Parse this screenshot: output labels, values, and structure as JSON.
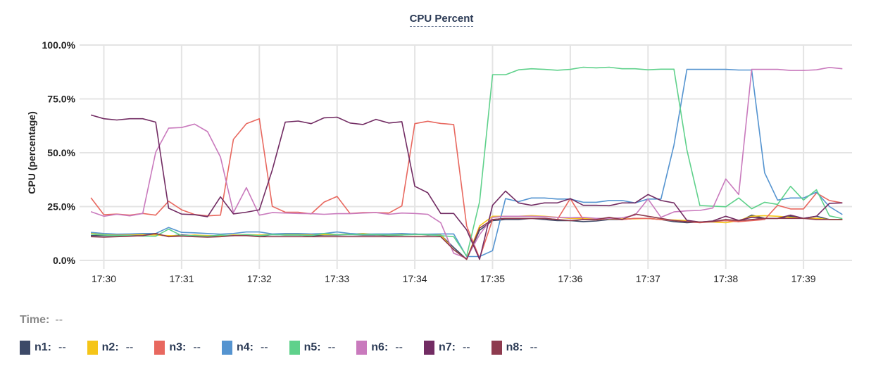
{
  "title": "CPU Percent",
  "time_label": "Time:",
  "time_value": "--",
  "chart_data": {
    "type": "line",
    "title": "CPU Percent",
    "xlabel": "",
    "ylabel": "CPU (percentage)",
    "ylim": [
      0,
      100
    ],
    "yticks": [
      "0.0%",
      "25.0%",
      "50.0%",
      "75.0%",
      "100.0%"
    ],
    "ytick_values": [
      0,
      25,
      50,
      75,
      100
    ],
    "xticks": [
      "17:30",
      "17:31",
      "17:32",
      "17:33",
      "17:34",
      "17:35",
      "17:36",
      "17:37",
      "17:38",
      "17:39"
    ],
    "x_start": "17:29:50",
    "x_step_seconds": 10,
    "grid": true,
    "legend_position": "bottom",
    "series": [
      {
        "name": "n1",
        "value_label": "--",
        "color": "#3d4a68",
        "values": [
          11.5,
          11.5,
          11.5,
          11.8,
          12,
          12,
          11.3,
          11.8,
          11.5,
          11,
          11.5,
          11.5,
          12,
          11.2,
          12,
          11.8,
          11.8,
          11.5,
          11.8,
          11.8,
          12,
          11.8,
          11.8,
          11.6,
          11.8,
          12.3,
          11.8,
          11.8,
          6,
          0.5,
          14,
          18.5,
          19,
          19,
          19.5,
          19,
          18.5,
          18.5,
          18,
          18.3,
          19,
          19,
          19.5,
          19.5,
          19,
          18,
          17.5,
          17.8,
          18.2,
          18.5,
          18,
          21,
          19.5,
          19.5,
          20.5,
          19.5,
          20.5,
          19,
          19
        ]
      },
      {
        "name": "n2",
        "value_label": "--",
        "color": "#f5c518",
        "values": [
          12.5,
          12,
          11.8,
          12,
          12,
          11.8,
          11.5,
          11.3,
          11.8,
          11.5,
          11.5,
          11.8,
          12,
          11.8,
          12.2,
          12,
          12,
          12,
          12,
          12,
          12.2,
          12.5,
          12,
          11.8,
          12,
          12,
          12,
          11.8,
          5,
          0.5,
          16,
          20.5,
          20.5,
          20.5,
          20.8,
          20.5,
          20,
          19.5,
          19.5,
          19.5,
          19.3,
          19.3,
          19.3,
          19.5,
          19,
          18.8,
          18.5,
          17.8,
          17.8,
          17.5,
          18.5,
          20.5,
          20.8,
          20.5,
          20,
          19.5,
          19.5,
          19,
          19
        ]
      },
      {
        "name": "n3",
        "value_label": "--",
        "color": "#e8685f",
        "values": [
          29.1,
          21.2,
          21.5,
          21,
          21.8,
          21,
          27.5,
          23.5,
          21.3,
          20.7,
          21,
          56.2,
          63.5,
          65.8,
          25.1,
          22.4,
          22.4,
          21.6,
          27.1,
          29.7,
          21.8,
          22.2,
          22.2,
          22,
          25.3,
          63.5,
          64.6,
          63.6,
          63.1,
          16,
          1,
          19,
          19.5,
          19.5,
          19.5,
          19.5,
          19,
          28.7,
          19,
          18.8,
          19.5,
          19,
          19.5,
          19.5,
          19,
          18.5,
          18,
          17.5,
          18,
          18.5,
          18,
          18.5,
          19,
          25.6,
          23.9,
          23.9,
          31.3,
          27.8,
          26.7
        ]
      },
      {
        "name": "n4",
        "value_label": "--",
        "color": "#5594d0",
        "values": [
          13,
          12.5,
          12.2,
          12.3,
          12.5,
          12.5,
          15.3,
          13,
          12.8,
          12.5,
          12.2,
          12.5,
          13.2,
          13.2,
          12.3,
          12.5,
          12.5,
          12.3,
          12.5,
          13.2,
          12.5,
          12.2,
          12.3,
          12.3,
          12.5,
          12.2,
          12.2,
          12.3,
          12.3,
          1.8,
          1.8,
          4.5,
          28.7,
          27.3,
          29,
          29,
          28.5,
          28.5,
          27,
          27,
          27.8,
          27.8,
          26.7,
          28.5,
          28.5,
          53.5,
          88.7,
          88.7,
          88.7,
          88.7,
          88.4,
          88.4,
          40.7,
          28,
          29,
          29,
          31.7,
          25,
          21.3
        ]
      },
      {
        "name": "n5",
        "value_label": "--",
        "color": "#5fd18b",
        "values": [
          12.2,
          11.8,
          11.5,
          11.5,
          11.3,
          11.2,
          14.5,
          11.5,
          11.5,
          11.2,
          11.8,
          11.5,
          12,
          11.5,
          12,
          11.8,
          11.8,
          11.5,
          12.5,
          12,
          12,
          12,
          12,
          11.8,
          11.8,
          12,
          12,
          11.5,
          11,
          2,
          27.3,
          86.2,
          86.2,
          88.5,
          89,
          88.7,
          88.3,
          88.7,
          89.7,
          89.4,
          89.7,
          89,
          89,
          88.5,
          88.8,
          88.8,
          51.3,
          25.5,
          25.2,
          24.9,
          29,
          24,
          27,
          26,
          34.4,
          28,
          32.8,
          20.7,
          19.4
        ]
      },
      {
        "name": "n6",
        "value_label": "--",
        "color": "#c97abd",
        "values": [
          22.6,
          20.5,
          21.4,
          20.7,
          21.8,
          50.2,
          61.4,
          61.7,
          63.3,
          59.8,
          48,
          22.2,
          33.8,
          21,
          22.2,
          22,
          21.8,
          21.7,
          21.4,
          21.7,
          21.7,
          22,
          22.2,
          21.4,
          22,
          21.8,
          21.4,
          17.5,
          3.3,
          1,
          12,
          20,
          20.5,
          20.5,
          20.5,
          20.3,
          20,
          19.8,
          20,
          19.5,
          19.5,
          19.8,
          21,
          28.5,
          20,
          22.5,
          23,
          23.2,
          24.3,
          37.8,
          30.6,
          88.7,
          88.7,
          88.7,
          88.2,
          88.2,
          88.5,
          89.6,
          89
        ]
      },
      {
        "name": "n7",
        "value_label": "--",
        "color": "#722c63",
        "values": [
          67.5,
          65.8,
          65.2,
          65.8,
          65.8,
          64.2,
          24.2,
          21.5,
          21.2,
          20.3,
          29.5,
          21.6,
          22.4,
          23.5,
          42,
          64.2,
          64.7,
          63.5,
          66.2,
          66.5,
          63.8,
          63.1,
          65.5,
          63.8,
          64.4,
          34.4,
          31.4,
          21.8,
          21.8,
          14.2,
          0.5,
          25.6,
          32.2,
          26.7,
          25.6,
          26.7,
          26.7,
          28.7,
          25.6,
          25.6,
          25.4,
          26.7,
          26.7,
          30.6,
          27.8,
          26.7,
          18.6,
          17.8,
          18.3,
          20.5,
          18.6,
          20,
          19.5,
          19.5,
          21,
          19.5,
          20.5,
          26.5,
          26.7
        ]
      },
      {
        "name": "n8",
        "value_label": "--",
        "color": "#8e3b4f",
        "values": [
          11,
          10.8,
          11,
          11.2,
          11.5,
          12.5,
          11,
          11.3,
          11,
          10.8,
          11,
          11.5,
          11.5,
          11,
          11,
          11,
          11,
          11,
          11,
          11,
          11,
          11,
          11,
          11,
          11,
          11,
          11,
          11,
          5,
          0.5,
          15,
          19,
          19.5,
          19.5,
          19.5,
          19.5,
          19,
          18.5,
          19,
          19,
          20,
          19,
          21.5,
          20.5,
          19.5,
          18.5,
          18,
          17.8,
          18,
          19,
          18.5,
          19,
          19.5,
          19.5,
          19.5,
          19.5,
          19,
          19,
          19
        ]
      }
    ]
  }
}
